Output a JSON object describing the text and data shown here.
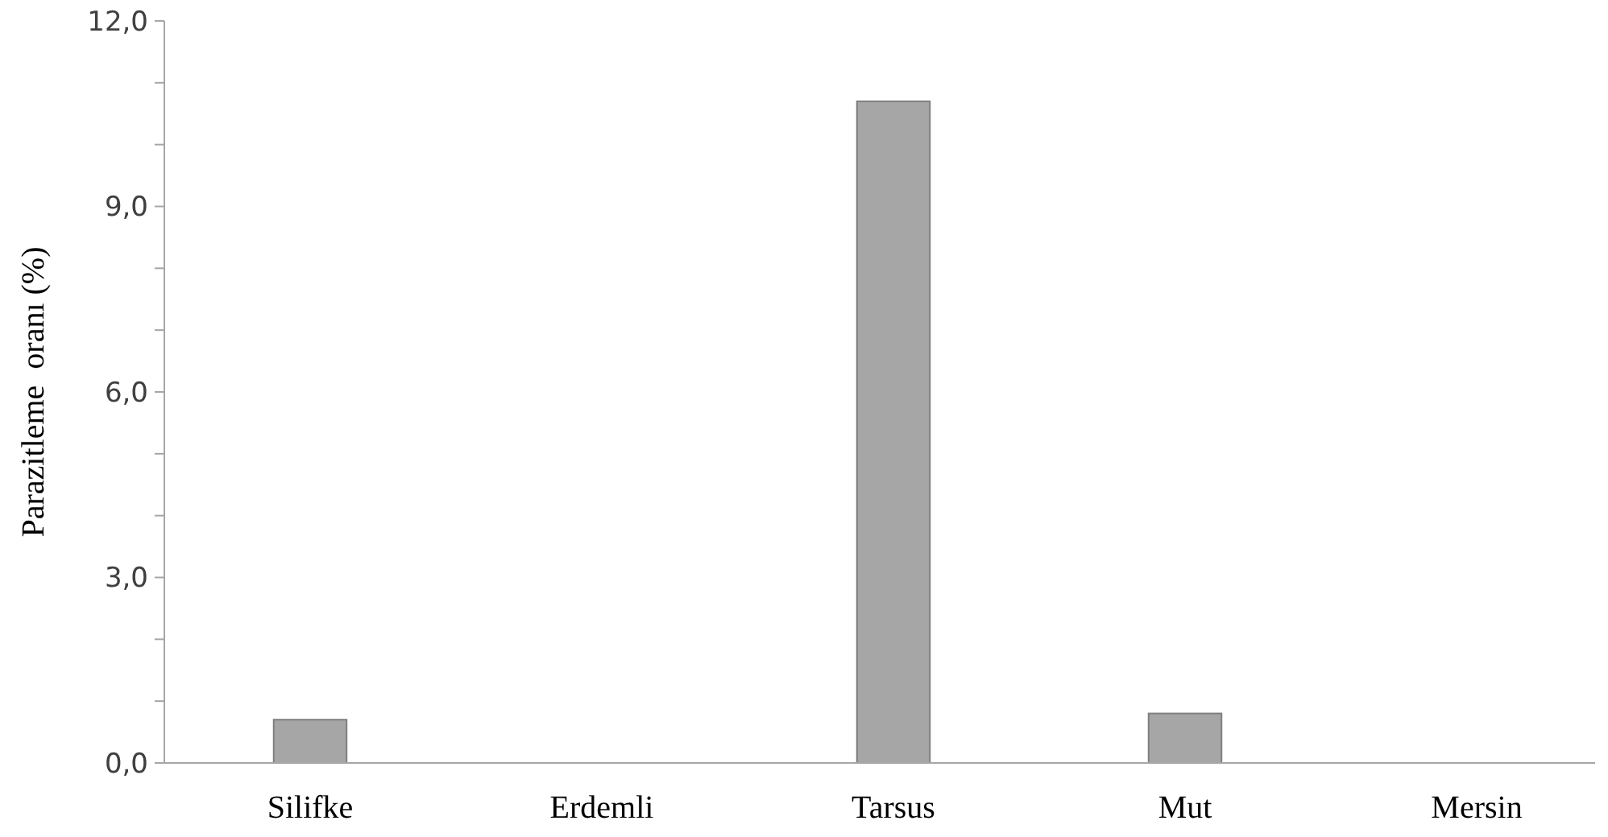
{
  "chart_data": {
    "type": "bar",
    "ylabel": "Parazitleme  oranı (%)",
    "categories": [
      "Silifke",
      "Erdemli",
      "Tarsus",
      "Mut",
      "Mersin"
    ],
    "values": [
      0.7,
      0,
      10.7,
      0.8,
      0
    ],
    "color": "#a6a6a6",
    "ylim": [
      0,
      12
    ],
    "yticks": [
      {
        "value": 0,
        "label": "0,0"
      },
      {
        "value": 1,
        "label": null
      },
      {
        "value": 2,
        "label": null
      },
      {
        "value": 3,
        "label": "3,0"
      },
      {
        "value": 4,
        "label": null
      },
      {
        "value": 5,
        "label": null
      },
      {
        "value": 6,
        "label": "6,0"
      },
      {
        "value": 7,
        "label": null
      },
      {
        "value": 8,
        "label": null
      },
      {
        "value": 9,
        "label": "9,0"
      },
      {
        "value": 10,
        "label": null
      },
      {
        "value": 11,
        "label": null
      },
      {
        "value": 12,
        "label": "12,0"
      }
    ],
    "grid": false
  }
}
